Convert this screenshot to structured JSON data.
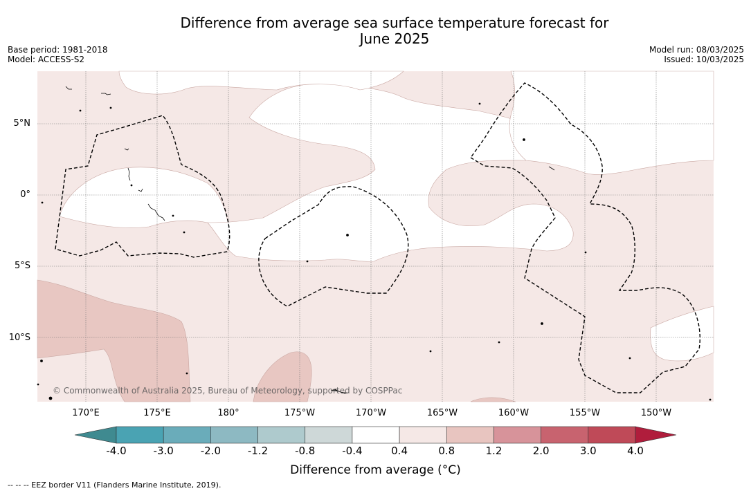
{
  "title_line1": "Difference from average sea surface temperature forecast for",
  "title_line2": "June 2025",
  "meta_left": {
    "base_period": "Base period: 1981-2018",
    "model": "Model: ACCESS-S2"
  },
  "meta_right": {
    "model_run": "Model run: 08/03/2025",
    "issued": "Issued: 10/03/2025"
  },
  "lat_labels": [
    "5°N",
    "0°",
    "5°S",
    "10°S"
  ],
  "lon_labels": [
    "170°E",
    "175°E",
    "180°",
    "175°W",
    "170°W",
    "165°W",
    "160°W",
    "155°W",
    "150°W"
  ],
  "copyright": "© Commonwealth of Australia 2025, Bureau of Meteorology, supported by COSPPac",
  "colorbar": {
    "ticks": [
      "-4.0",
      "-3.0",
      "-2.0",
      "-1.2",
      "-0.8",
      "-0.4",
      "0.4",
      "0.8",
      "1.2",
      "2.0",
      "3.0",
      "4.0"
    ],
    "colors": [
      "#4aa3b3",
      "#6aacba",
      "#8db9c2",
      "#aecacd",
      "#ced8d8",
      "#ffffff",
      "#f5e8e6",
      "#e8c5c0",
      "#d7939a",
      "#c8636f",
      "#bf4a58"
    ],
    "under_color": "#3f8a90",
    "over_color": "#b01d3c",
    "label": "Difference from average (°C)"
  },
  "field_colors": {
    "light": "#f5e8e6",
    "medium": "#e8c7c2",
    "neutral": "#ffffff"
  },
  "footnote": "--  --  -- EEZ border V11 (Flanders Marine Institute, 2019)."
}
